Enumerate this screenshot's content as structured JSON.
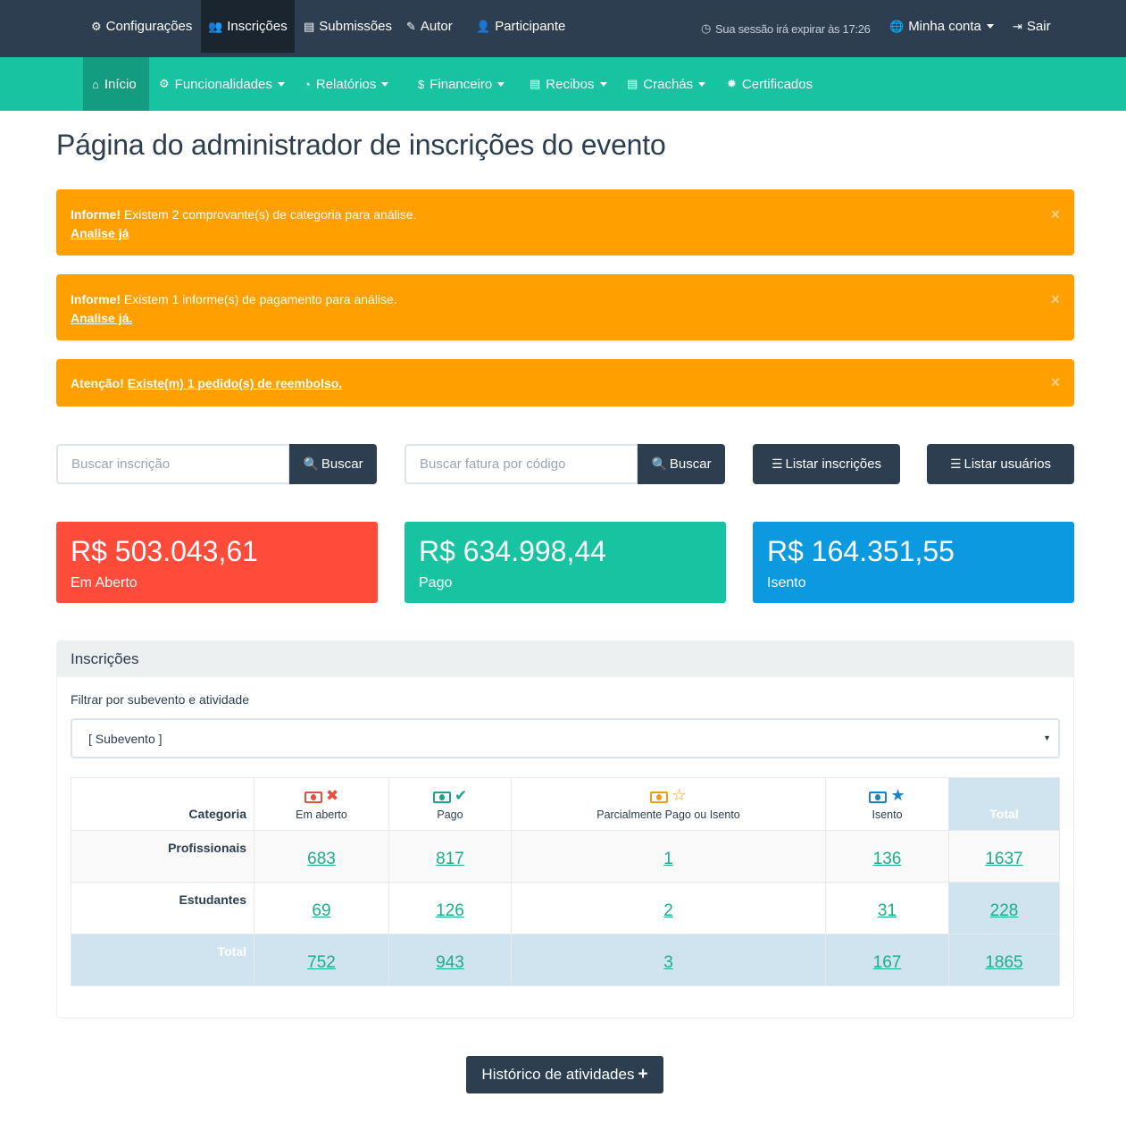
{
  "topnav": {
    "items": [
      {
        "label": "Configurações",
        "icon": "gears-icon"
      },
      {
        "label": "Inscrições",
        "icon": "users-icon"
      },
      {
        "label": "Submissões",
        "icon": "document-icon"
      },
      {
        "label": "Autor",
        "icon": "pencil-icon"
      },
      {
        "label": "Participante",
        "icon": "user-icon"
      }
    ],
    "session": "Sua sessão irá expirar às 17:26",
    "account": "Minha conta",
    "logout": "Sair"
  },
  "subnav": {
    "items": [
      {
        "label": "Início",
        "icon": "home-icon"
      },
      {
        "label": "Funcionalidades",
        "icon": "gear-icon"
      },
      {
        "label": "Relatórios",
        "icon": "pie-chart-icon"
      },
      {
        "label": "Financeiro",
        "icon": "dollar-icon"
      },
      {
        "label": "Recibos",
        "icon": "receipt-icon"
      },
      {
        "label": "Crachás",
        "icon": "badge-icon"
      },
      {
        "label": "Certificados",
        "icon": "certificate-icon"
      }
    ]
  },
  "page_title": "Página do administrador de inscrições do evento",
  "alerts": [
    {
      "prefix": "Informe!",
      "text": " Existem 2 comprovante(s) de categoria para análise.",
      "link": "Analise já"
    },
    {
      "prefix": "Informe!",
      "text": " Existem 1 informe(s) de pagamento para análise.",
      "link": "Analise já."
    },
    {
      "prefix": "Atenção!",
      "text": " ",
      "link": "Existe(m) 1 pedido(s) de reembolso."
    }
  ],
  "alert_close": "×",
  "search": {
    "registration_placeholder": "Buscar inscrição",
    "invoice_placeholder": "Buscar fatura por código",
    "button": "Buscar",
    "list_registrations": "Listar inscrições",
    "list_users": "Listar usuários"
  },
  "stats": [
    {
      "value": "R$ 503.043,61",
      "label": "Em Aberto",
      "color": "#ff4b3a"
    },
    {
      "value": "R$ 634.998,44",
      "label": "Pago",
      "color": "#17c3a0"
    },
    {
      "value": "R$ 164.351,55",
      "label": "Isento",
      "color": "#0b9ae0"
    }
  ],
  "panel": {
    "title": "Inscrições",
    "filter_label": "Filtrar por subevento e atividade",
    "select_value": "[ Subevento ]",
    "select_arrow": "▼"
  },
  "table": {
    "headers": {
      "category": "Categoria",
      "open": "Em aberto",
      "paid": "Pago",
      "partial": "Parcialmente Pago ou Isento",
      "exempt": "Isento",
      "total": "Total"
    },
    "rows": [
      {
        "label": "Profissionais",
        "open": "683",
        "paid": "817",
        "partial": "1",
        "exempt": "136",
        "total": "1637"
      },
      {
        "label": "Estudantes",
        "open": "69",
        "paid": "126",
        "partial": "2",
        "exempt": "31",
        "total": "228"
      },
      {
        "label": "Total",
        "open": "752",
        "paid": "943",
        "partial": "3",
        "exempt": "167",
        "total": "1865"
      }
    ]
  },
  "history_button": "Histórico de atividades"
}
